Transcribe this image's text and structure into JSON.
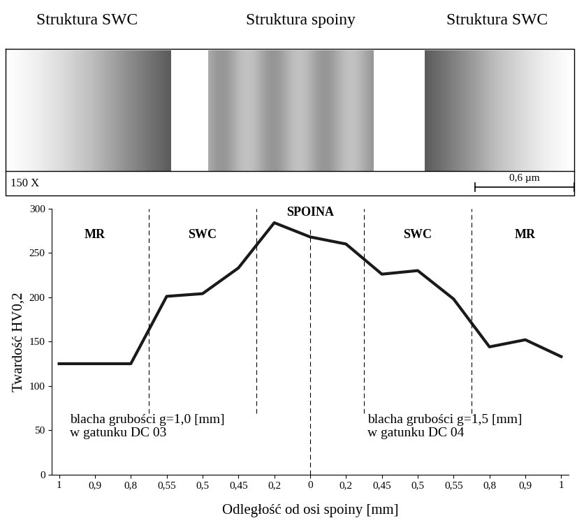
{
  "micrographs": {
    "titles": [
      "Struktura SWC",
      "Struktura spoiny",
      "Struktura SWC"
    ],
    "magnification": "150 X",
    "scale_bar": "0,6 µm"
  },
  "chart_data": {
    "type": "line",
    "categories": [
      "1",
      "0,9",
      "0,8",
      "0,55",
      "0,5",
      "0,45",
      "0,2",
      "0",
      "0,2",
      "0,45",
      "0,5",
      "0,55",
      "0,8",
      "0,9",
      "1"
    ],
    "values": [
      125,
      125,
      125,
      201,
      204,
      233,
      284,
      268,
      260,
      226,
      230,
      198,
      144,
      152,
      133
    ],
    "color": "#1a1a1a",
    "ylim": [
      0,
      300
    ],
    "yticks": [
      0,
      50,
      100,
      150,
      200,
      250,
      300
    ],
    "grid": false,
    "y_label": "Twardość HV0,2",
    "x_label": "Odległość od osi spoiny [mm]",
    "zones": [
      {
        "label": "MR",
        "first": 0,
        "last": 2
      },
      {
        "label": "SWC",
        "first": 3,
        "last": 5
      },
      {
        "label": "SPOINA",
        "first": 6,
        "last": 8
      },
      {
        "label": "SWC",
        "first": 9,
        "last": 11
      },
      {
        "label": "MR",
        "first": 12,
        "last": 14
      }
    ],
    "annotations": [
      "blacha grubości g=1,0 [mm]\nw gatunku DC 03",
      "blacha grubości g=1,5 [mm]\nw gatunku DC 04"
    ]
  }
}
